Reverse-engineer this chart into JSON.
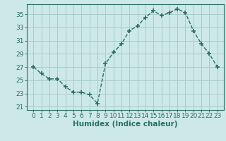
{
  "x": [
    0,
    1,
    2,
    3,
    4,
    5,
    6,
    7,
    8,
    9,
    10,
    11,
    12,
    13,
    14,
    15,
    16,
    17,
    18,
    19,
    20,
    21,
    22,
    23
  ],
  "y": [
    27.0,
    26.0,
    25.2,
    25.2,
    24.0,
    23.2,
    23.2,
    22.8,
    21.5,
    27.5,
    29.2,
    30.5,
    32.5,
    33.2,
    34.5,
    35.5,
    34.8,
    35.2,
    35.8,
    35.2,
    32.5,
    30.5,
    29.0,
    27.0
  ],
  "line_color": "#2a7060",
  "marker": "+",
  "marker_size": 4,
  "bg_color": "#cce8e8",
  "grid_color": "#a8cccc",
  "xlabel": "Humidex (Indice chaleur)",
  "ylim": [
    20.5,
    36.5
  ],
  "yticks": [
    21,
    23,
    25,
    27,
    29,
    31,
    33,
    35
  ],
  "xtick_labels": [
    "0",
    "1",
    "2",
    "3",
    "4",
    "5",
    "6",
    "7",
    "8",
    "9",
    "10",
    "11",
    "12",
    "13",
    "14",
    "15",
    "16",
    "17",
    "18",
    "19",
    "20",
    "21",
    "22",
    "23"
  ],
  "xlabel_fontsize": 7.5,
  "tick_fontsize": 6.5,
  "axis_color": "#2a7060",
  "spine_color": "#2a7060",
  "linewidth": 1.0,
  "marker_linewidth": 1.2
}
